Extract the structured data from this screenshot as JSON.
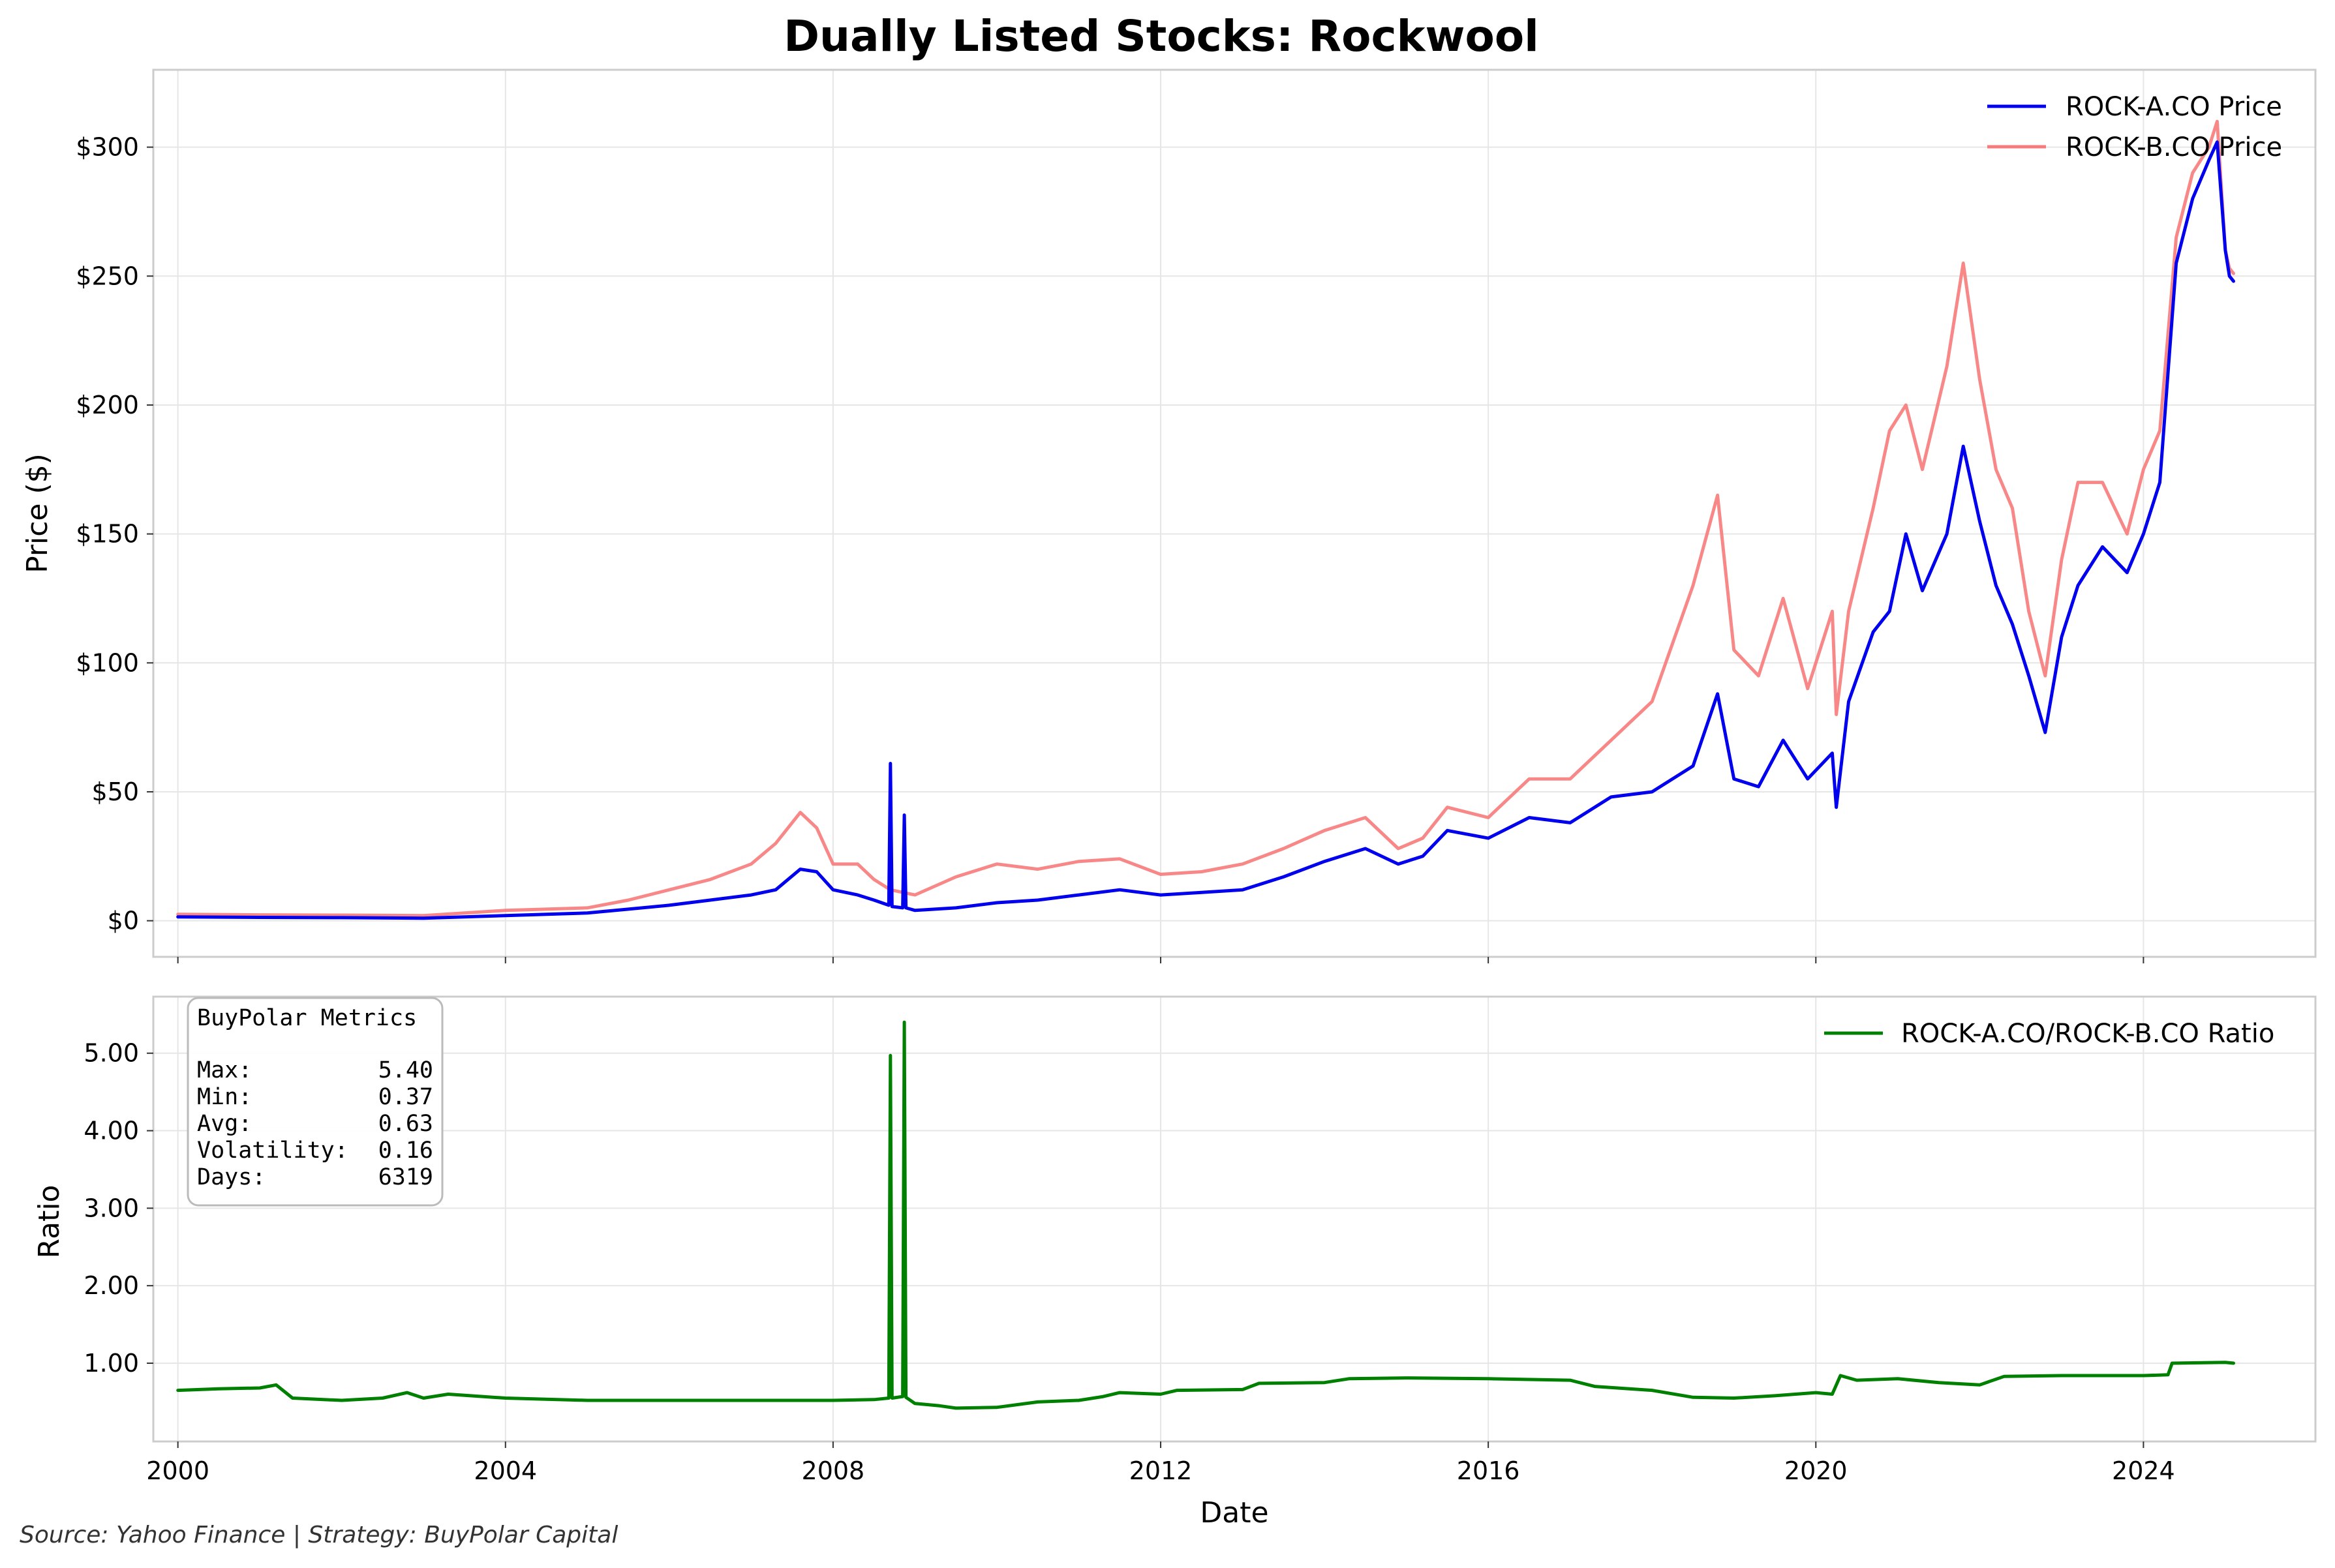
{
  "title": "Dually Listed Stocks: Rockwool",
  "source_note": "Source: Yahoo Finance | Strategy: BuyPolar Capital",
  "metrics_box": {
    "heading": "BuyPolar Metrics",
    "rows": [
      {
        "label": "Max:",
        "value": "5.40"
      },
      {
        "label": "Min:",
        "value": "0.37"
      },
      {
        "label": "Avg:",
        "value": "0.63"
      },
      {
        "label": "Volatility:",
        "value": "0.16"
      },
      {
        "label": "Days:",
        "value": "6319"
      }
    ]
  },
  "chart_data": [
    {
      "type": "line",
      "title": "Dually Listed Stocks: Rockwool",
      "xlabel": "",
      "ylabel": "Price ($)",
      "xlim": [
        1999.7,
        2026.1
      ],
      "ylim": [
        -14,
        330
      ],
      "x_ticks": [
        2000,
        2004,
        2008,
        2012,
        2016,
        2020,
        2024
      ],
      "y_ticks": [
        0,
        50,
        100,
        150,
        200,
        250,
        300
      ],
      "y_tick_labels": [
        "$0",
        "$50",
        "$100",
        "$150",
        "$200",
        "$250",
        "$300"
      ],
      "grid": true,
      "legend": "top-right",
      "series": [
        {
          "name": "ROCK-A.CO Price",
          "color": "#0000ee",
          "points": [
            [
              2000.0,
              1.5
            ],
            [
              2001.0,
              1.3
            ],
            [
              2002.0,
              1.2
            ],
            [
              2003.0,
              1.0
            ],
            [
              2003.5,
              1.5
            ],
            [
              2004.0,
              2.0
            ],
            [
              2005.0,
              3.0
            ],
            [
              2005.5,
              4.5
            ],
            [
              2006.0,
              6.0
            ],
            [
              2006.5,
              8.0
            ],
            [
              2007.0,
              10.0
            ],
            [
              2007.3,
              12.0
            ],
            [
              2007.6,
              20.0
            ],
            [
              2007.8,
              19.0
            ],
            [
              2008.0,
              12.0
            ],
            [
              2008.3,
              10.0
            ],
            [
              2008.5,
              8.0
            ],
            [
              2008.68,
              6.0
            ],
            [
              2008.7,
              61.0
            ],
            [
              2008.72,
              5.5
            ],
            [
              2008.85,
              5.0
            ],
            [
              2008.87,
              41.0
            ],
            [
              2008.89,
              5.0
            ],
            [
              2009.0,
              4.0
            ],
            [
              2009.5,
              5.0
            ],
            [
              2010.0,
              7.0
            ],
            [
              2010.5,
              8.0
            ],
            [
              2011.0,
              10.0
            ],
            [
              2011.5,
              12.0
            ],
            [
              2012.0,
              10.0
            ],
            [
              2012.5,
              11.0
            ],
            [
              2013.0,
              12.0
            ],
            [
              2013.5,
              17.0
            ],
            [
              2014.0,
              23.0
            ],
            [
              2014.5,
              28.0
            ],
            [
              2014.9,
              22.0
            ],
            [
              2015.2,
              25.0
            ],
            [
              2015.5,
              35.0
            ],
            [
              2016.0,
              32.0
            ],
            [
              2016.5,
              40.0
            ],
            [
              2017.0,
              38.0
            ],
            [
              2017.5,
              48.0
            ],
            [
              2018.0,
              50.0
            ],
            [
              2018.5,
              60.0
            ],
            [
              2018.8,
              88.0
            ],
            [
              2019.0,
              55.0
            ],
            [
              2019.3,
              52.0
            ],
            [
              2019.6,
              70.0
            ],
            [
              2019.9,
              55.0
            ],
            [
              2020.2,
              65.0
            ],
            [
              2020.25,
              44.0
            ],
            [
              2020.4,
              85.0
            ],
            [
              2020.7,
              112.0
            ],
            [
              2020.9,
              120.0
            ],
            [
              2021.1,
              150.0
            ],
            [
              2021.3,
              128.0
            ],
            [
              2021.6,
              150.0
            ],
            [
              2021.8,
              184.0
            ],
            [
              2022.0,
              155.0
            ],
            [
              2022.2,
              130.0
            ],
            [
              2022.4,
              115.0
            ],
            [
              2022.6,
              95.0
            ],
            [
              2022.8,
              73.0
            ],
            [
              2023.0,
              110.0
            ],
            [
              2023.2,
              130.0
            ],
            [
              2023.5,
              145.0
            ],
            [
              2023.8,
              135.0
            ],
            [
              2024.0,
              150.0
            ],
            [
              2024.2,
              170.0
            ],
            [
              2024.4,
              255.0
            ],
            [
              2024.6,
              280.0
            ],
            [
              2024.8,
              295.0
            ],
            [
              2024.9,
              302.0
            ],
            [
              2025.0,
              260.0
            ],
            [
              2025.05,
              250.0
            ],
            [
              2025.1,
              248.0
            ]
          ]
        },
        {
          "name": "ROCK-B.CO Price",
          "color": "#f77b7b",
          "points": [
            [
              2000.0,
              2.5
            ],
            [
              2001.0,
              2.3
            ],
            [
              2002.0,
              2.2
            ],
            [
              2003.0,
              2.0
            ],
            [
              2003.5,
              3.0
            ],
            [
              2004.0,
              4.0
            ],
            [
              2005.0,
              5.0
            ],
            [
              2005.5,
              8.0
            ],
            [
              2006.0,
              12.0
            ],
            [
              2006.5,
              16.0
            ],
            [
              2007.0,
              22.0
            ],
            [
              2007.3,
              30.0
            ],
            [
              2007.6,
              42.0
            ],
            [
              2007.8,
              36.0
            ],
            [
              2008.0,
              22.0
            ],
            [
              2008.3,
              22.0
            ],
            [
              2008.5,
              16.0
            ],
            [
              2008.7,
              12.0
            ],
            [
              2009.0,
              10.0
            ],
            [
              2009.5,
              17.0
            ],
            [
              2010.0,
              22.0
            ],
            [
              2010.5,
              20.0
            ],
            [
              2011.0,
              23.0
            ],
            [
              2011.5,
              24.0
            ],
            [
              2012.0,
              18.0
            ],
            [
              2012.5,
              19.0
            ],
            [
              2013.0,
              22.0
            ],
            [
              2013.5,
              28.0
            ],
            [
              2014.0,
              35.0
            ],
            [
              2014.5,
              40.0
            ],
            [
              2014.9,
              28.0
            ],
            [
              2015.2,
              32.0
            ],
            [
              2015.5,
              44.0
            ],
            [
              2016.0,
              40.0
            ],
            [
              2016.5,
              55.0
            ],
            [
              2017.0,
              55.0
            ],
            [
              2017.5,
              70.0
            ],
            [
              2018.0,
              85.0
            ],
            [
              2018.5,
              130.0
            ],
            [
              2018.8,
              165.0
            ],
            [
              2019.0,
              105.0
            ],
            [
              2019.3,
              95.0
            ],
            [
              2019.6,
              125.0
            ],
            [
              2019.9,
              90.0
            ],
            [
              2020.2,
              120.0
            ],
            [
              2020.25,
              80.0
            ],
            [
              2020.4,
              120.0
            ],
            [
              2020.7,
              160.0
            ],
            [
              2020.9,
              190.0
            ],
            [
              2021.1,
              200.0
            ],
            [
              2021.3,
              175.0
            ],
            [
              2021.6,
              215.0
            ],
            [
              2021.8,
              255.0
            ],
            [
              2022.0,
              210.0
            ],
            [
              2022.2,
              175.0
            ],
            [
              2022.4,
              160.0
            ],
            [
              2022.6,
              120.0
            ],
            [
              2022.8,
              95.0
            ],
            [
              2023.0,
              140.0
            ],
            [
              2023.2,
              170.0
            ],
            [
              2023.5,
              170.0
            ],
            [
              2023.8,
              150.0
            ],
            [
              2024.0,
              175.0
            ],
            [
              2024.2,
              190.0
            ],
            [
              2024.4,
              265.0
            ],
            [
              2024.6,
              290.0
            ],
            [
              2024.8,
              300.0
            ],
            [
              2024.9,
              310.0
            ],
            [
              2025.0,
              260.0
            ],
            [
              2025.05,
              253.0
            ],
            [
              2025.1,
              251.0
            ]
          ]
        }
      ]
    },
    {
      "type": "line",
      "xlabel": "Date",
      "ylabel": "Ratio",
      "xlim": [
        1999.7,
        2026.1
      ],
      "ylim": [
        -0.01,
        5.73
      ],
      "x_ticks": [
        2000,
        2004,
        2008,
        2012,
        2016,
        2020,
        2024
      ],
      "y_ticks": [
        1,
        2,
        3,
        4,
        5
      ],
      "y_tick_labels": [
        "1.00",
        "2.00",
        "3.00",
        "4.00",
        "5.00"
      ],
      "grid": true,
      "legend": "top-right",
      "series": [
        {
          "name": "ROCK-A.CO/ROCK-B.CO Ratio",
          "color": "#008000",
          "points": [
            [
              2000.0,
              0.65
            ],
            [
              2000.5,
              0.67
            ],
            [
              2001.0,
              0.68
            ],
            [
              2001.2,
              0.72
            ],
            [
              2001.4,
              0.55
            ],
            [
              2002.0,
              0.52
            ],
            [
              2002.5,
              0.55
            ],
            [
              2002.8,
              0.62
            ],
            [
              2003.0,
              0.55
            ],
            [
              2003.3,
              0.6
            ],
            [
              2004.0,
              0.55
            ],
            [
              2005.0,
              0.52
            ],
            [
              2006.0,
              0.52
            ],
            [
              2007.0,
              0.52
            ],
            [
              2008.0,
              0.52
            ],
            [
              2008.5,
              0.53
            ],
            [
              2008.68,
              0.55
            ],
            [
              2008.7,
              4.97
            ],
            [
              2008.72,
              0.55
            ],
            [
              2008.85,
              0.57
            ],
            [
              2008.87,
              5.4
            ],
            [
              2008.89,
              0.56
            ],
            [
              2009.0,
              0.48
            ],
            [
              2009.3,
              0.45
            ],
            [
              2009.5,
              0.42
            ],
            [
              2010.0,
              0.43
            ],
            [
              2010.5,
              0.5
            ],
            [
              2011.0,
              0.52
            ],
            [
              2011.3,
              0.57
            ],
            [
              2011.5,
              0.62
            ],
            [
              2012.0,
              0.6
            ],
            [
              2012.2,
              0.65
            ],
            [
              2013.0,
              0.66
            ],
            [
              2013.2,
              0.74
            ],
            [
              2014.0,
              0.75
            ],
            [
              2014.3,
              0.8
            ],
            [
              2015.0,
              0.81
            ],
            [
              2016.0,
              0.8
            ],
            [
              2017.0,
              0.78
            ],
            [
              2017.3,
              0.7
            ],
            [
              2018.0,
              0.65
            ],
            [
              2018.5,
              0.56
            ],
            [
              2019.0,
              0.55
            ],
            [
              2019.5,
              0.58
            ],
            [
              2020.0,
              0.62
            ],
            [
              2020.2,
              0.6
            ],
            [
              2020.3,
              0.84
            ],
            [
              2020.5,
              0.78
            ],
            [
              2021.0,
              0.8
            ],
            [
              2021.5,
              0.75
            ],
            [
              2022.0,
              0.72
            ],
            [
              2022.3,
              0.83
            ],
            [
              2023.0,
              0.84
            ],
            [
              2024.0,
              0.84
            ],
            [
              2024.3,
              0.85
            ],
            [
              2024.35,
              1.0
            ],
            [
              2025.0,
              1.01
            ],
            [
              2025.1,
              1.0
            ]
          ]
        }
      ]
    }
  ]
}
